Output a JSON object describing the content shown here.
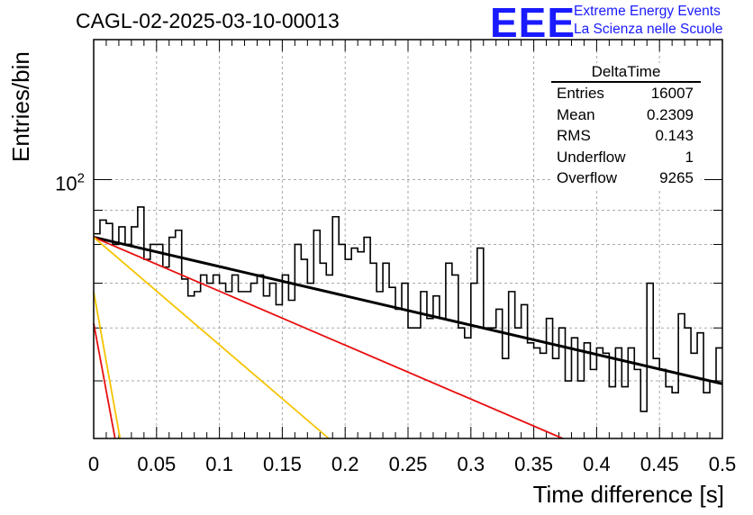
{
  "header": {
    "title": "CAGL-02-2025-03-10-00013",
    "logo_text": "EEE",
    "brand_line1": "Extreme Energy Events",
    "brand_line2": "La Scienza nelle Scuole"
  },
  "stats_box": {
    "title": "DeltaTime",
    "rows": [
      {
        "label": "Entries",
        "value": "16007"
      },
      {
        "label": "Mean",
        "value": "0.2309"
      },
      {
        "label": "RMS",
        "value": "0.143"
      },
      {
        "label": "Underflow",
        "value": "1"
      },
      {
        "label": "Overflow",
        "value": "9265"
      }
    ]
  },
  "chart_data": {
    "type": "histogram",
    "title": "CAGL-02-2025-03-10-00013",
    "xlabel": "Time difference [s]",
    "ylabel": "Entries/bin",
    "xlim": [
      0,
      0.5
    ],
    "ylim": [
      41,
      162
    ],
    "yscale": "log",
    "grid": true,
    "x_ticks": [
      "0",
      "0.05",
      "0.1",
      "0.15",
      "0.2",
      "0.25",
      "0.3",
      "0.35",
      "0.4",
      "0.45",
      "0.5"
    ],
    "y_tick_label": "10^2",
    "bin_width": 0.005,
    "histogram_values": [
      83,
      87,
      86,
      80,
      85,
      80,
      85,
      91,
      76,
      80,
      80,
      74,
      82,
      84,
      71,
      67,
      68,
      72,
      70,
      72,
      70,
      68,
      72,
      68,
      68,
      70,
      72,
      67,
      70,
      65,
      72,
      66,
      80,
      76,
      70,
      84,
      75,
      72,
      88,
      80,
      76,
      79,
      78,
      82,
      75,
      68,
      75,
      69,
      64,
      70,
      60,
      60,
      68,
      62,
      67,
      62,
      75,
      72,
      60,
      58,
      70,
      79,
      60,
      60,
      64,
      54,
      68,
      60,
      65,
      57,
      56,
      55,
      62,
      54,
      60,
      50,
      58,
      50,
      57,
      52,
      56,
      55,
      49,
      56,
      49,
      56,
      52,
      45,
      70,
      54,
      52,
      49,
      48,
      63,
      60,
      55,
      59,
      48,
      50,
      56
    ],
    "fit_lines": [
      {
        "color": "#000000",
        "x": [
          0,
          0.5
        ],
        "y": [
          82,
          49.5
        ]
      },
      {
        "color": "#e81010",
        "x": [
          0,
          0.373
        ],
        "y": [
          82,
          41
        ]
      },
      {
        "color": "#f5c400",
        "x": [
          0,
          0.187
        ],
        "y": [
          82,
          41
        ]
      },
      {
        "color": "#f5c400",
        "x": [
          0,
          0.021
        ],
        "y": [
          68,
          41
        ]
      },
      {
        "color": "#e81010",
        "x": [
          0,
          0.017
        ],
        "y": [
          61,
          41
        ]
      }
    ]
  }
}
